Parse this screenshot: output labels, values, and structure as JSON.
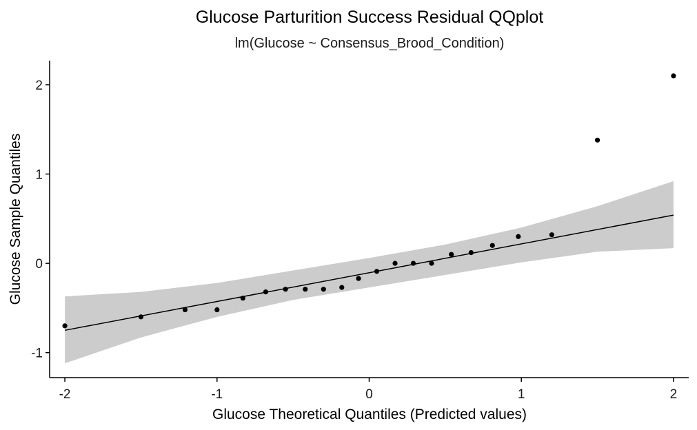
{
  "chart_data": {
    "type": "scatter",
    "title": "Glucose Parturition Success Residual QQplot",
    "subtitle": "lm(Glucose ~ Consensus_Brood_Condition)",
    "xlabel": "Glucose Theoretical Quantiles (Predicted values)",
    "ylabel": "Glucose Sample Quantiles",
    "xlim": [
      -2.1,
      2.1
    ],
    "ylim": [
      -1.28,
      2.27
    ],
    "x_ticks": [
      -2,
      -1,
      0,
      1,
      2
    ],
    "x_tick_labels": [
      "-2",
      "-1",
      "0",
      "1",
      "2"
    ],
    "y_ticks": [
      -1,
      0,
      1,
      2
    ],
    "y_tick_labels": [
      "-1",
      "0",
      "1",
      "2"
    ],
    "grid": false,
    "colors": {
      "points": "#000000",
      "line": "#000000",
      "band": "#cccccc",
      "axis": "#000000"
    },
    "points": [
      {
        "x": -2.0,
        "y": -0.7
      },
      {
        "x": -1.5,
        "y": -0.6
      },
      {
        "x": -1.21,
        "y": -0.52
      },
      {
        "x": -1.0,
        "y": -0.52
      },
      {
        "x": -0.83,
        "y": -0.39
      },
      {
        "x": -0.68,
        "y": -0.32
      },
      {
        "x": -0.55,
        "y": -0.29
      },
      {
        "x": -0.42,
        "y": -0.29
      },
      {
        "x": -0.3,
        "y": -0.29
      },
      {
        "x": -0.18,
        "y": -0.27
      },
      {
        "x": -0.07,
        "y": -0.17
      },
      {
        "x": 0.05,
        "y": -0.09
      },
      {
        "x": 0.17,
        "y": 0.0
      },
      {
        "x": 0.29,
        "y": 0.0
      },
      {
        "x": 0.41,
        "y": 0.0
      },
      {
        "x": 0.54,
        "y": 0.1
      },
      {
        "x": 0.67,
        "y": 0.12
      },
      {
        "x": 0.81,
        "y": 0.2
      },
      {
        "x": 0.98,
        "y": 0.3
      },
      {
        "x": 1.2,
        "y": 0.32
      },
      {
        "x": 1.5,
        "y": 1.38
      },
      {
        "x": 2.0,
        "y": 2.1
      }
    ],
    "reference_line": {
      "x": [
        -2.0,
        2.0
      ],
      "y": [
        -0.75,
        0.54
      ]
    },
    "confidence_band": {
      "x": [
        -2.0,
        -1.5,
        -1.0,
        -0.5,
        0.0,
        0.5,
        1.0,
        1.5,
        2.0
      ],
      "upper": [
        -0.37,
        -0.32,
        -0.22,
        -0.08,
        0.06,
        0.21,
        0.4,
        0.64,
        0.92
      ],
      "lower": [
        -1.12,
        -0.83,
        -0.6,
        -0.41,
        -0.27,
        -0.13,
        0.01,
        0.13,
        0.17
      ]
    }
  }
}
